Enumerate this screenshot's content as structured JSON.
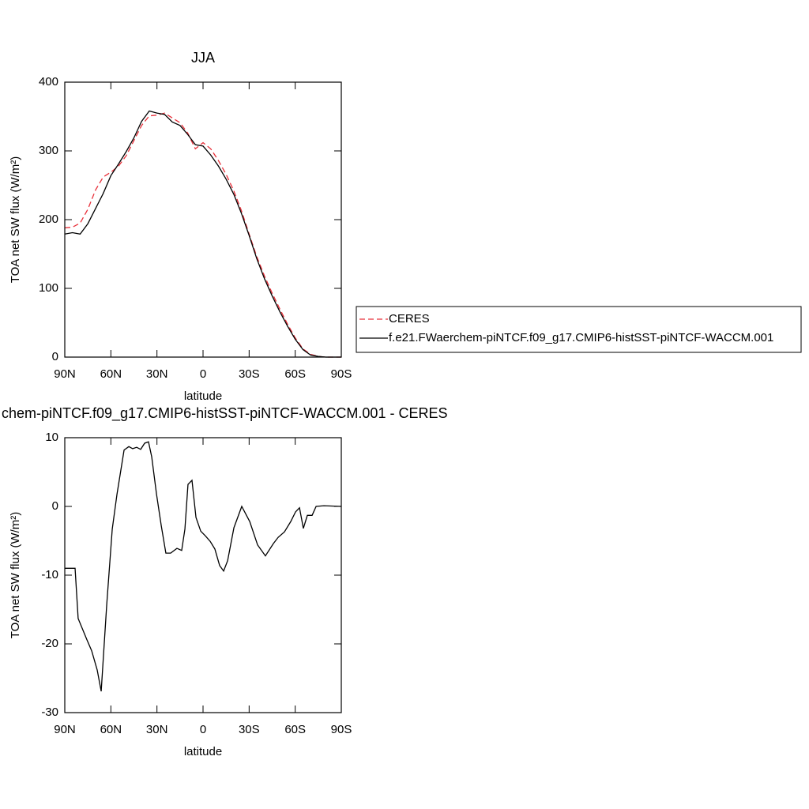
{
  "chart_data": [
    {
      "type": "line",
      "title": "JJA",
      "xlabel": "latitude",
      "ylabel": "TOA net SW flux (W/m²)",
      "x": [
        90,
        85,
        80,
        75,
        70,
        65,
        60,
        55,
        50,
        45,
        40,
        35,
        30,
        25,
        20,
        15,
        10,
        5,
        0,
        -5,
        -10,
        -15,
        -20,
        -25,
        -30,
        -35,
        -40,
        -45,
        -50,
        -55,
        -60,
        -65,
        -70,
        -75,
        -80,
        -85,
        -90
      ],
      "series": [
        {
          "name": "CERES",
          "color": "#e8303a",
          "dash": "dashed",
          "values": [
            188,
            189,
            195,
            215,
            243,
            262,
            269,
            278,
            293,
            315,
            337,
            351,
            352,
            355,
            348,
            341,
            326,
            303,
            312,
            303,
            286,
            266,
            242,
            213,
            179,
            146,
            118,
            93,
            70,
            48,
            28,
            12,
            4,
            1,
            0,
            0,
            0
          ]
        },
        {
          "name": "f.e21.FWaerchem-piNTCF.f09_g17.CMIP6-histSST-piNTCF-WACCM.001",
          "color": "#000000",
          "dash": "solid",
          "values": [
            179,
            181,
            179,
            194,
            216,
            238,
            264,
            281,
            299,
            319,
            343,
            358,
            355,
            353,
            342,
            337,
            324,
            309,
            307,
            294,
            278,
            259,
            237,
            209,
            177,
            143,
            114,
            89,
            66,
            45,
            26,
            11,
            3,
            1,
            0,
            0,
            0
          ]
        }
      ],
      "xlim": [
        90,
        -90
      ],
      "xticks": [
        {
          "value": 90,
          "label": "90N"
        },
        {
          "value": 60,
          "label": "60N"
        },
        {
          "value": 30,
          "label": "30N"
        },
        0,
        {
          "value": -30,
          "label": "30S"
        },
        {
          "value": -60,
          "label": "60S"
        },
        {
          "value": -90,
          "label": "90S"
        }
      ],
      "ylim": [
        0,
        400
      ],
      "yticks": [
        0,
        100,
        200,
        300,
        400
      ],
      "legend": "right"
    },
    {
      "type": "line",
      "title": "chem-piNTCF.f09_g17.CMIP6-histSST-piNTCF-WACCM.001 - CERES",
      "xlabel": "latitude",
      "ylabel": "TOA net SW flux (W/m²)",
      "x": [
        90,
        83.3,
        81.3,
        75.6,
        72.5,
        68.9,
        66.3,
        62.7,
        59.1,
        56,
        51.4,
        48.3,
        45.8,
        43.2,
        40.6,
        38,
        35.5,
        33.4,
        30.3,
        27.2,
        24.2,
        21.1,
        17,
        13.9,
        11.8,
        9.8,
        7.2,
        4.6,
        1.5,
        -1.6,
        -4.7,
        -7.7,
        -10.8,
        -13.4,
        -16,
        -20.1,
        -25.2,
        -30.4,
        -35.5,
        -40.6,
        -45.8,
        -48.9,
        -53,
        -57.1,
        -60.2,
        -62.8,
        -65.3,
        -67.9,
        -71,
        -73.6,
        -78.7,
        -90
      ],
      "values": [
        -9,
        -9,
        -16.3,
        -19.4,
        -21,
        -23.8,
        -26.9,
        -14.3,
        -3.3,
        1.8,
        8.2,
        8.7,
        8.4,
        8.6,
        8.3,
        9.2,
        9.4,
        7.2,
        1.8,
        -2.8,
        -6.8,
        -6.8,
        -6.1,
        -6.4,
        -3.3,
        3.2,
        3.8,
        -1.6,
        -3.6,
        -4.3,
        -5.1,
        -6.2,
        -8.6,
        -9.4,
        -7.9,
        -3.1,
        0,
        -2.2,
        -5.6,
        -7.2,
        -5.4,
        -4.5,
        -3.7,
        -2.2,
        -0.8,
        -0.2,
        -3.2,
        -1.3,
        -1.3,
        0,
        0.1,
        0
      ],
      "color": "#000000",
      "xlim": [
        90,
        -90
      ],
      "xticks": [
        {
          "value": 90,
          "label": "90N"
        },
        {
          "value": 60,
          "label": "60N"
        },
        {
          "value": 30,
          "label": "30N"
        },
        0,
        {
          "value": -30,
          "label": "30S"
        },
        {
          "value": -60,
          "label": "60S"
        },
        {
          "value": -90,
          "label": "90S"
        }
      ],
      "ylim": [
        -30,
        10
      ],
      "yticks": [
        -30,
        -20,
        -10,
        0,
        10
      ]
    }
  ]
}
